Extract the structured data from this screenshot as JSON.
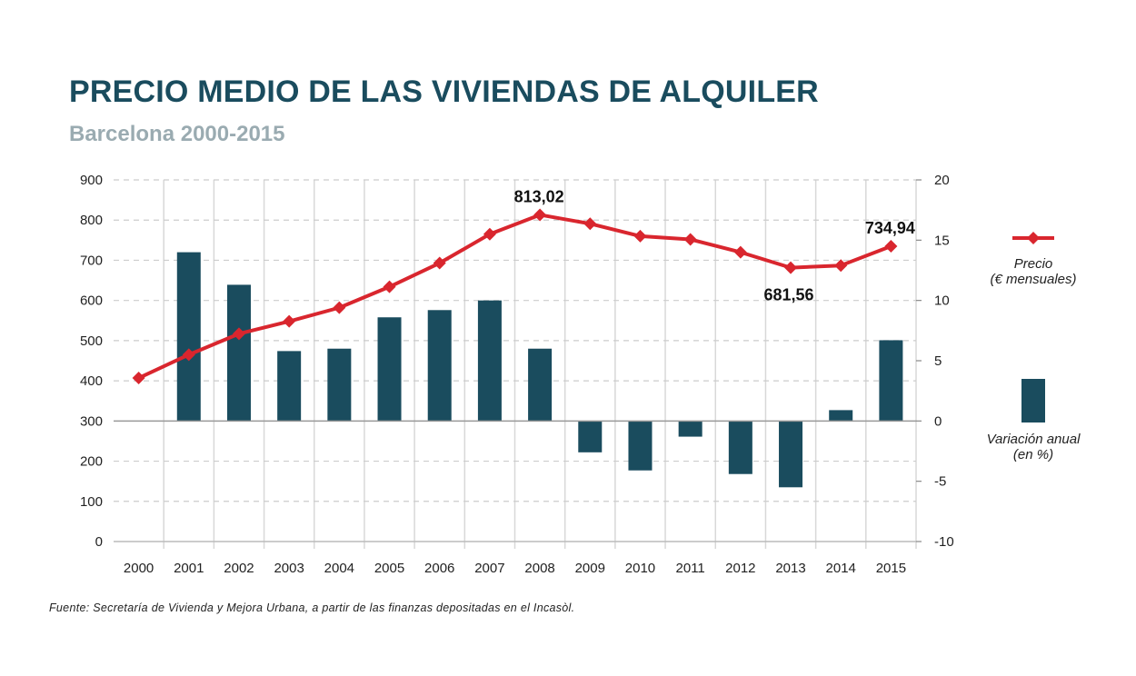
{
  "title": "PRECIO MEDIO DE LAS VIVIENDAS DE ALQUILER",
  "subtitle": "Barcelona 2000-2015",
  "source": "Fuente: Secretaría de Vivienda y Mejora Urbana, a partir de las finanzas depositadas en el Incasòl.",
  "legend": {
    "price_line1": "Precio",
    "price_line2": "(€ mensuales)",
    "variation_line1": "Variación anual",
    "variation_line2": "(en %)"
  },
  "colors": {
    "line": "#d9262e",
    "bar": "#1a4c5e",
    "grid": "#cccccc",
    "axis": "#888888"
  },
  "chart_data": {
    "type": "bar",
    "categories": [
      "2000",
      "2001",
      "2002",
      "2003",
      "2004",
      "2005",
      "2006",
      "2007",
      "2008",
      "2009",
      "2010",
      "2011",
      "2012",
      "2013",
      "2014",
      "2015"
    ],
    "series": [
      {
        "type": "line",
        "axis": "left",
        "values": [
          407,
          465,
          517,
          548,
          582,
          634,
          693,
          765,
          813.02,
          791,
          760,
          752,
          720,
          681.56,
          687,
          734.94
        ]
      },
      {
        "type": "bar",
        "axis": "right",
        "values": [
          null,
          14.0,
          11.3,
          5.8,
          6.0,
          8.6,
          9.2,
          10.0,
          6.0,
          -2.6,
          -4.1,
          -1.3,
          -4.4,
          -5.5,
          0.9,
          6.7
        ]
      }
    ],
    "annotations": [
      {
        "category": "2008",
        "label": "813,02"
      },
      {
        "category": "2013",
        "label": "681,56"
      },
      {
        "category": "2015",
        "label": "734,94"
      }
    ],
    "left_axis": {
      "ylim": [
        0,
        900
      ],
      "ticks": [
        "0",
        "100",
        "200",
        "300",
        "400",
        "500",
        "600",
        "700",
        "800",
        "900"
      ]
    },
    "right_axis": {
      "ylim": [
        -10,
        20
      ],
      "ticks": [
        "-10",
        "-5",
        "0",
        "5",
        "10",
        "15",
        "20"
      ]
    },
    "grid": true,
    "legend_position": "right"
  }
}
